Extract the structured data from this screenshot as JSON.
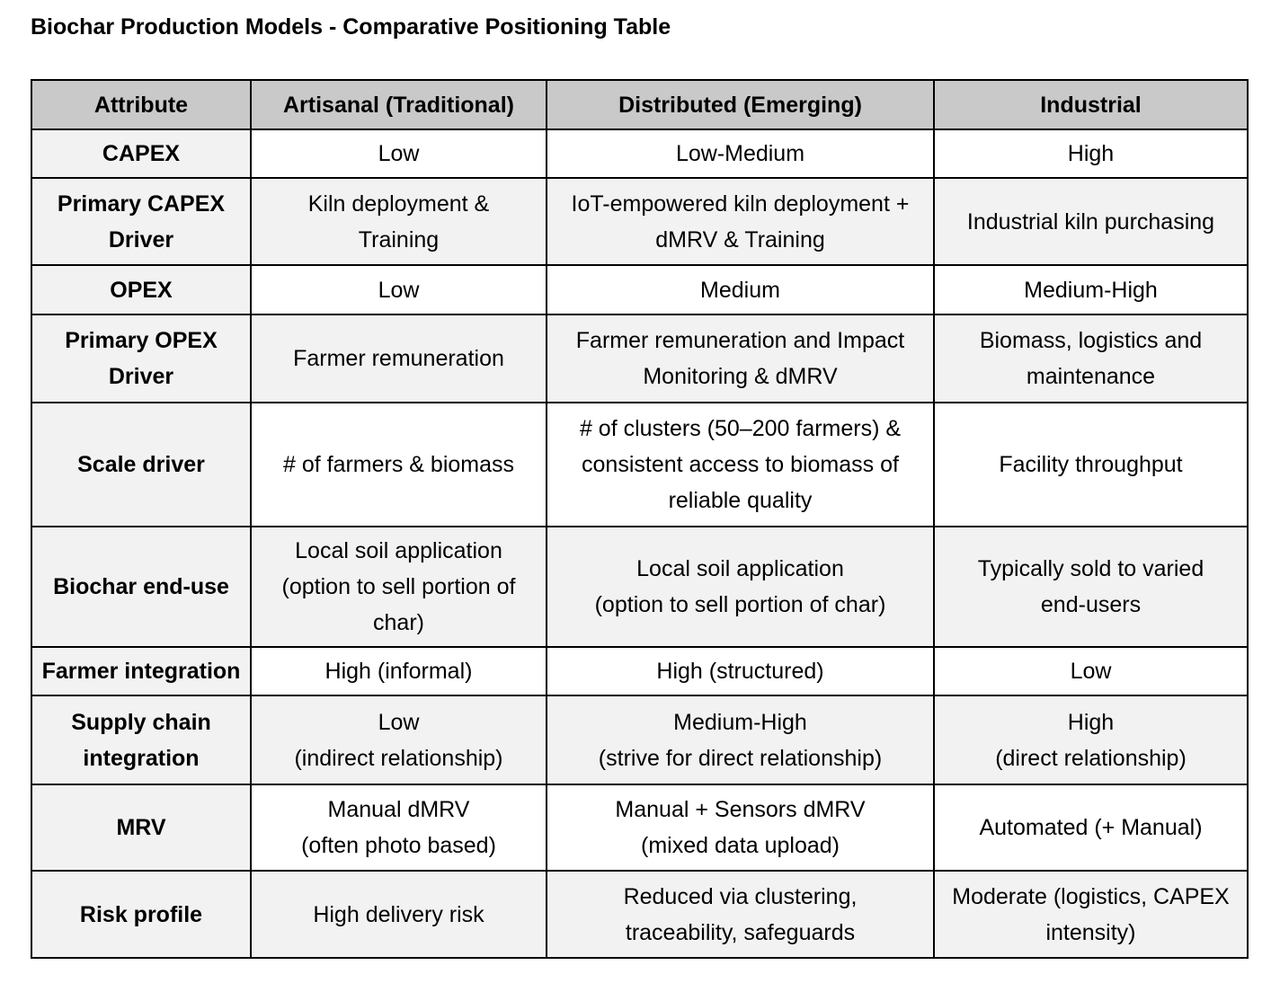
{
  "title": "Biochar Production Models - Comparative Positioning Table",
  "colors": {
    "header_bg": "#c9c9c9",
    "stripe_bg": "#f2f2f2",
    "border": "#000000",
    "text": "#000000"
  },
  "table": {
    "columns": [
      "Attribute",
      "Artisanal (Traditional)",
      "Distributed (Emerging)",
      "Industrial"
    ],
    "rows": [
      {
        "attribute": "CAPEX",
        "cells": [
          "Low",
          "Low-Medium",
          "High"
        ]
      },
      {
        "attribute": "Primary CAPEX\nDriver",
        "cells": [
          "Kiln deployment &\nTraining",
          "IoT-empowered kiln deployment +\ndMRV & Training",
          "Industrial kiln purchasing"
        ]
      },
      {
        "attribute": "OPEX",
        "cells": [
          "Low",
          "Medium",
          "Medium-High"
        ]
      },
      {
        "attribute": "Primary OPEX\nDriver",
        "cells": [
          "Farmer remuneration",
          "Farmer remuneration and Impact\nMonitoring & dMRV",
          "Biomass, logistics and\nmaintenance"
        ]
      },
      {
        "attribute": "Scale driver",
        "cells": [
          "# of farmers & biomass",
          "# of clusters (50–200 farmers) &\nconsistent access to biomass of\nreliable quality",
          "Facility throughput"
        ]
      },
      {
        "attribute": "Biochar end-use",
        "cells": [
          "Local soil application\n(option to sell portion of\nchar)",
          "Local soil application\n(option to sell portion of char)",
          "Typically sold to varied\nend-users"
        ]
      },
      {
        "attribute": "Farmer integration",
        "cells": [
          "High (informal)",
          "High (structured)",
          "Low"
        ]
      },
      {
        "attribute": "Supply chain\nintegration",
        "cells": [
          "Low\n(indirect relationship)",
          "Medium-High\n(strive for direct relationship)",
          "High\n(direct relationship)"
        ]
      },
      {
        "attribute": "MRV",
        "cells": [
          "Manual dMRV\n(often photo based)",
          "Manual + Sensors dMRV\n(mixed data upload)",
          "Automated (+ Manual)"
        ]
      },
      {
        "attribute": "Risk profile",
        "cells": [
          "High delivery risk",
          "Reduced via clustering,\ntraceability, safeguards",
          "Moderate (logistics, CAPEX\nintensity)"
        ]
      }
    ]
  }
}
